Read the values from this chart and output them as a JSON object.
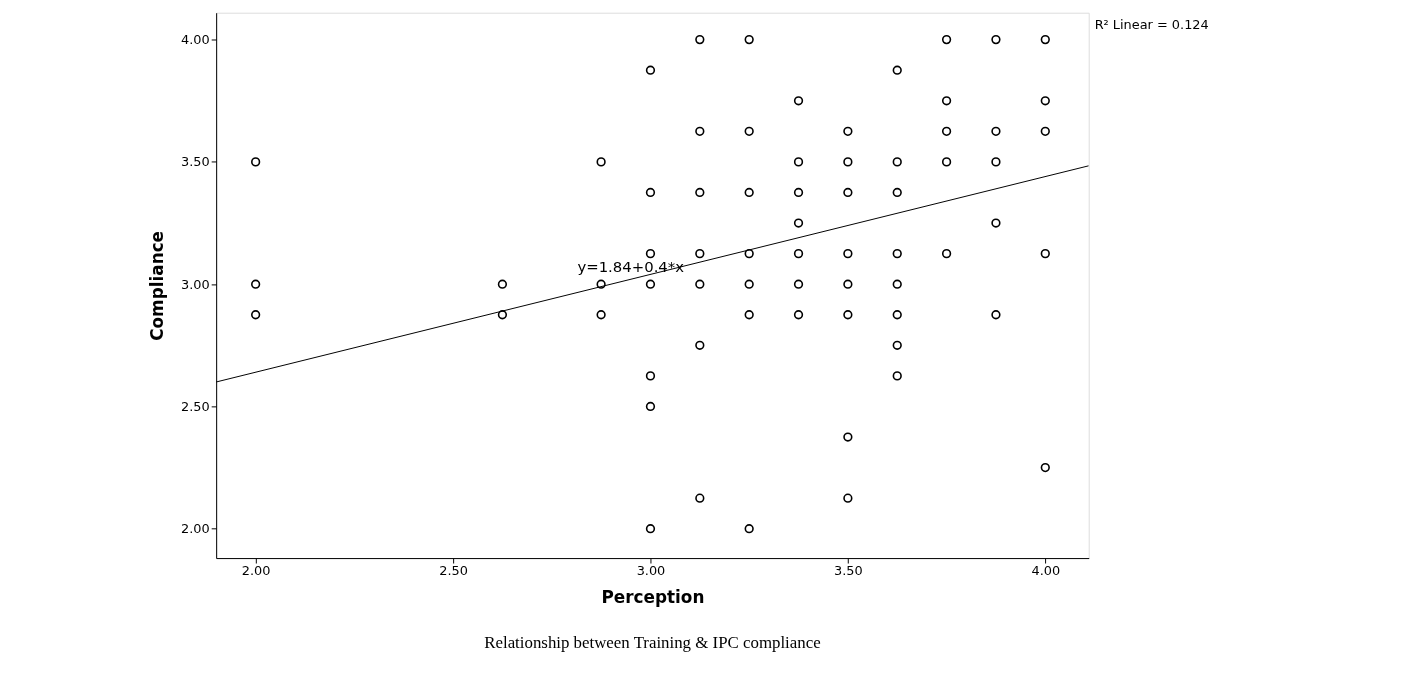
{
  "chart_data": {
    "type": "scatter",
    "xlabel": "Perception",
    "ylabel": "Compliance",
    "xlim": [
      1.9,
      4.11
    ],
    "ylim": [
      1.88,
      4.11
    ],
    "xticks": [
      {
        "value": 2,
        "label": "2.00"
      },
      {
        "value": 2.5,
        "label": "2.50"
      },
      {
        "value": 3,
        "label": "3.00"
      },
      {
        "value": 3.5,
        "label": "3.50"
      },
      {
        "value": 4,
        "label": "4.00"
      }
    ],
    "yticks": [
      {
        "value": 2,
        "label": "2.00"
      },
      {
        "value": 2.5,
        "label": "2.50"
      },
      {
        "value": 3,
        "label": "3.00"
      },
      {
        "value": 3.5,
        "label": "3.50"
      },
      {
        "value": 4,
        "label": "4.00"
      }
    ],
    "grid": false,
    "series": [
      {
        "marker": "circle",
        "color": "#000000",
        "x": [
          3.125,
          3.25,
          3.75,
          3.875,
          4.0,
          3.0,
          3.625,
          3.375,
          3.75,
          4.0,
          3.125,
          3.25,
          3.5,
          3.75,
          3.875,
          4.0,
          2.0,
          2.875,
          3.375,
          3.5,
          3.625,
          3.75,
          3.875,
          3.0,
          3.125,
          3.25,
          3.375,
          3.5,
          3.625,
          3.375,
          3.875,
          3.0,
          3.125,
          3.25,
          3.375,
          3.5,
          3.625,
          3.75,
          4.0,
          2.0,
          2.625,
          2.875,
          3.0,
          3.125,
          3.25,
          3.375,
          3.5,
          3.625,
          2.0,
          2.625,
          2.875,
          3.25,
          3.375,
          3.5,
          3.625,
          3.875,
          3.125,
          3.625,
          3.0,
          3.625,
          3.0,
          3.5,
          4.0,
          3.125,
          3.5,
          3.0,
          3.25
        ],
        "values": [
          4.0,
          4.0,
          4.0,
          4.0,
          4.0,
          3.875,
          3.875,
          3.75,
          3.75,
          3.75,
          3.625,
          3.625,
          3.625,
          3.625,
          3.625,
          3.625,
          3.5,
          3.5,
          3.5,
          3.5,
          3.5,
          3.5,
          3.5,
          3.375,
          3.375,
          3.375,
          3.375,
          3.375,
          3.375,
          3.25,
          3.25,
          3.125,
          3.125,
          3.125,
          3.125,
          3.125,
          3.125,
          3.125,
          3.125,
          3.0,
          3.0,
          3.0,
          3.0,
          3.0,
          3.0,
          3.0,
          3.0,
          3.0,
          2.875,
          2.875,
          2.875,
          2.875,
          2.875,
          2.875,
          2.875,
          2.875,
          2.75,
          2.75,
          2.625,
          2.625,
          2.5,
          2.375,
          2.25,
          2.125,
          2.125,
          2.0,
          2.0
        ]
      },
      {
        "type": "line",
        "marker": "none",
        "line_style": "solid",
        "color": "#000000",
        "x": [
          1.9,
          4.11
        ],
        "values": [
          2.6,
          3.484
        ]
      }
    ],
    "annotations": [
      {
        "text": "y=1.84+0.4*x",
        "x": 2.95,
        "y": 3.03
      },
      "R² Linear = 0.124",
      "Relationship between Training & IPC compliance"
    ]
  }
}
